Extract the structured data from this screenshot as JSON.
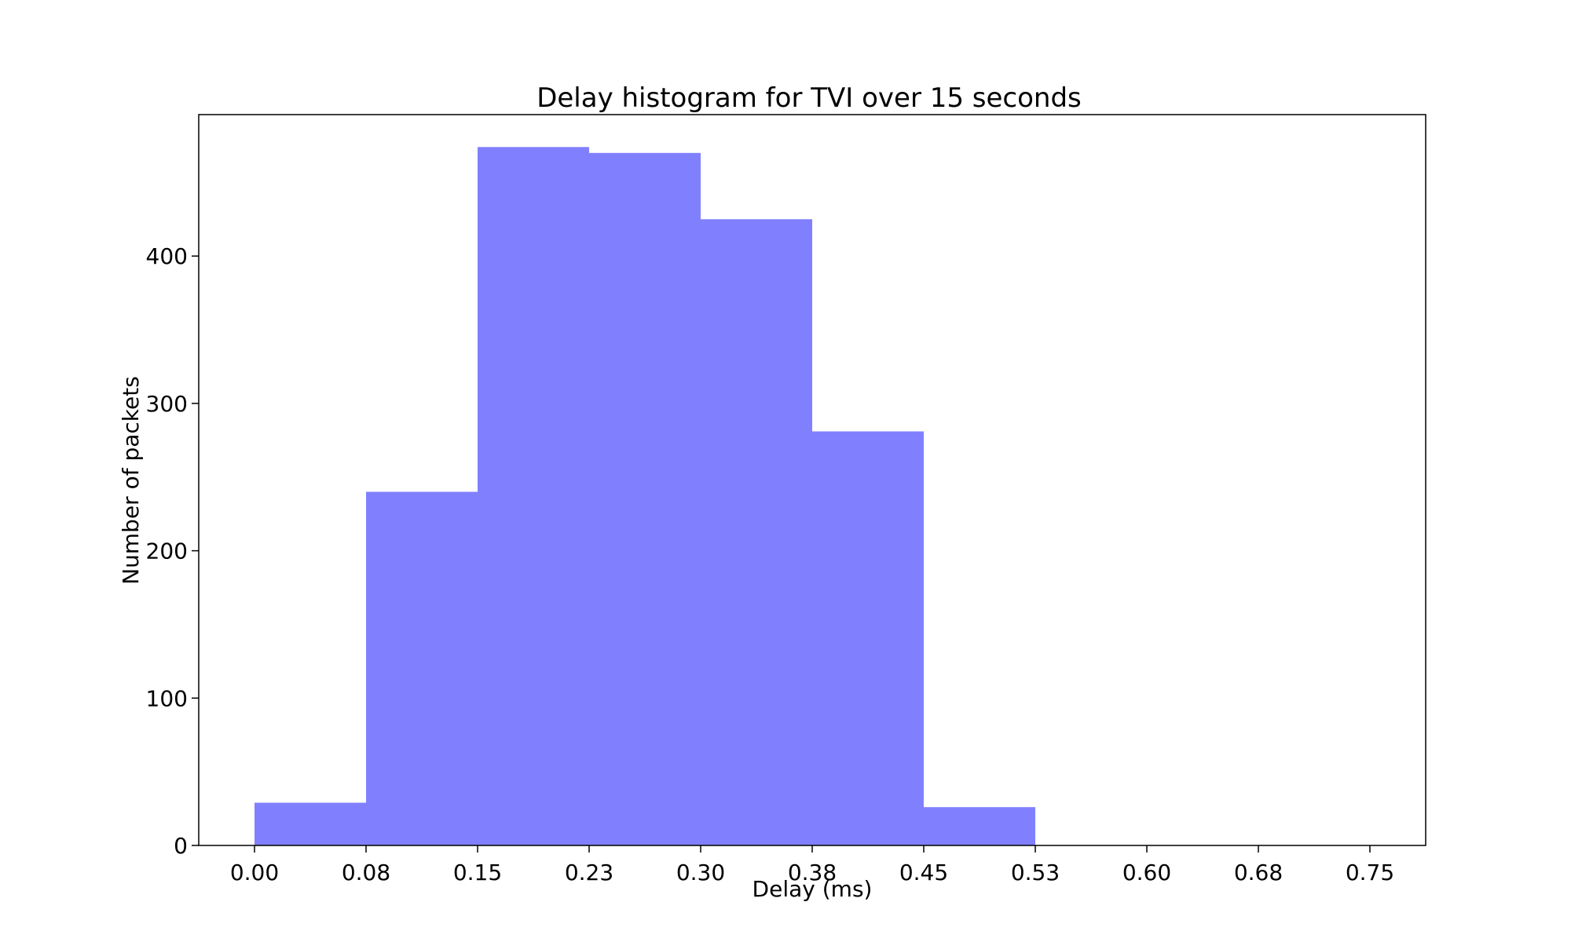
{
  "chart_data": {
    "type": "bar",
    "title": "Delay histogram for TVI over 15 seconds",
    "xlabel": "Delay (ms)",
    "ylabel": "Number of packets",
    "xlim": [
      -0.0375,
      0.7875
    ],
    "ylim": [
      0,
      496
    ],
    "x_ticks": [
      0.0,
      0.075,
      0.15,
      0.225,
      0.3,
      0.375,
      0.45,
      0.525,
      0.6,
      0.675,
      0.75
    ],
    "x_tick_labels": [
      "0.00",
      "0.08",
      "0.15",
      "0.23",
      "0.30",
      "0.38",
      "0.45",
      "0.53",
      "0.60",
      "0.68",
      "0.75"
    ],
    "y_ticks": [
      0,
      100,
      200,
      300,
      400
    ],
    "y_tick_labels": [
      "0",
      "100",
      "200",
      "300",
      "400"
    ],
    "bins": [
      {
        "start": 0.0,
        "end": 0.075,
        "count": 29
      },
      {
        "start": 0.075,
        "end": 0.15,
        "count": 240
      },
      {
        "start": 0.15,
        "end": 0.225,
        "count": 474
      },
      {
        "start": 0.225,
        "end": 0.3,
        "count": 470
      },
      {
        "start": 0.3,
        "end": 0.375,
        "count": 425
      },
      {
        "start": 0.375,
        "end": 0.45,
        "count": 281
      },
      {
        "start": 0.45,
        "end": 0.525,
        "count": 26
      }
    ],
    "bar_color": "#8080ff",
    "grid": false,
    "legend": "none"
  }
}
